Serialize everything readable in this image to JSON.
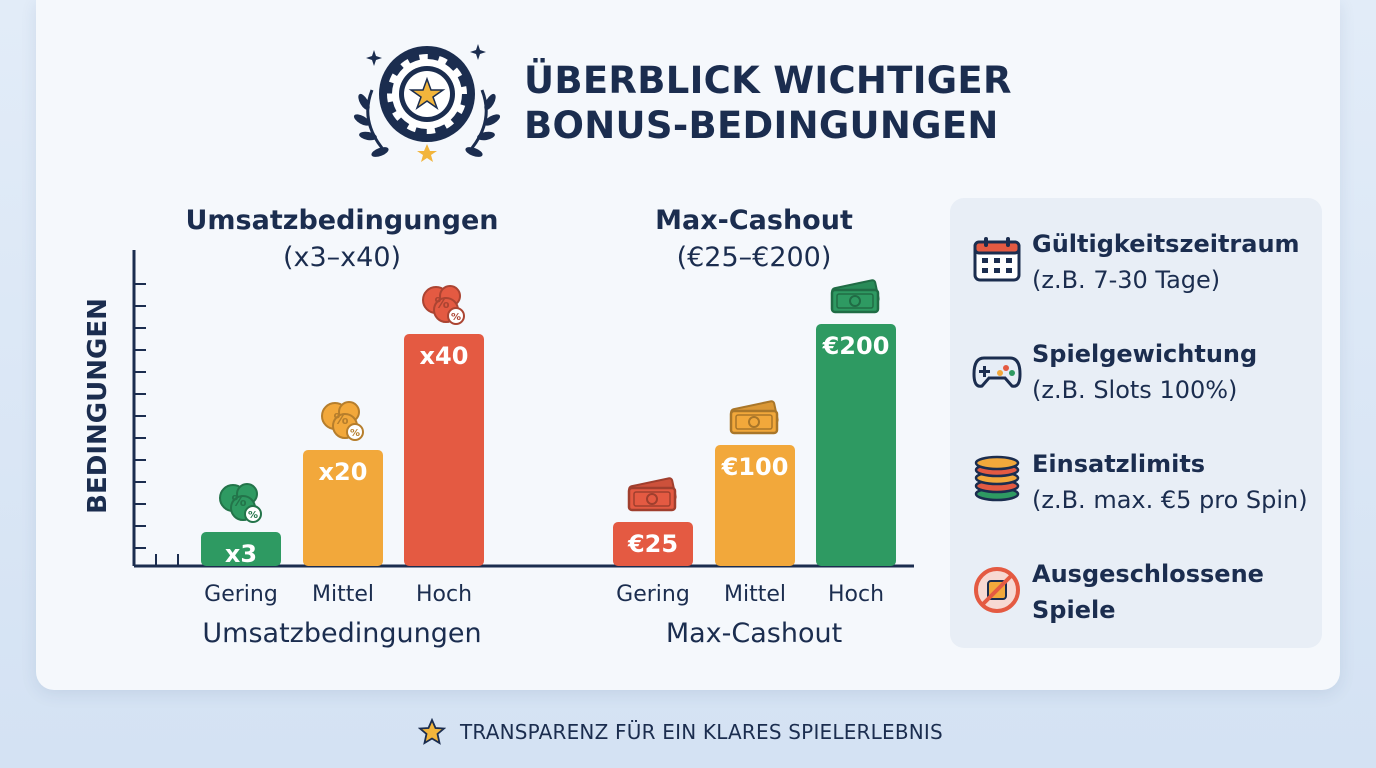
{
  "header": {
    "title_line1": "ÜBERBLICK WICHTIGER",
    "title_line2": "BONUS-BEDINGUNGEN"
  },
  "chart_data": [
    {
      "type": "bar",
      "title": "Umsatzbedingungen",
      "subtitle": "(x3–x40)",
      "xlabel": "Umsatzbedingungen",
      "ylabel": "BEDINGUNGEN",
      "categories": [
        "Gering",
        "Mittel",
        "Hoch"
      ],
      "values": [
        3,
        20,
        40
      ],
      "labels": [
        "x3",
        "x20",
        "x40"
      ],
      "colors": [
        "#2e9a62",
        "#f2a83b",
        "#e45a42"
      ],
      "badge_icon": "percent-badge-icon",
      "ylim": [
        0,
        48
      ]
    },
    {
      "type": "bar",
      "title": "Max-Cashout",
      "subtitle": "(€25–€200)",
      "xlabel": "Max-Cashout",
      "categories": [
        "Gering",
        "Mittel",
        "Hoch"
      ],
      "values": [
        25,
        100,
        200
      ],
      "labels": [
        "€25",
        "€100",
        "€200"
      ],
      "colors": [
        "#e45a42",
        "#f2a83b",
        "#2e9a62"
      ],
      "badge_icon": "cash-icon",
      "ylim": [
        0,
        240
      ]
    }
  ],
  "sidebar": {
    "items": [
      {
        "title": "Gültigkeitszeitraum",
        "sub": "(z.B. 7-30 Tage)",
        "icon": "calendar-icon"
      },
      {
        "title": "Spielgewichtung",
        "sub": "(z.B. Slots 100%)",
        "icon": "gamepad-icon"
      },
      {
        "title": "Einsatzlimits",
        "sub": "(z.B. max. €5 pro Spin)",
        "icon": "chip-stack-icon"
      },
      {
        "title": "Ausgeschlossene",
        "sub": "Spiele",
        "icon": "prohibited-icon"
      }
    ]
  },
  "footer": {
    "text": "TRANSPARENZ FÜR EIN KLARES SPIELERLEBNIS",
    "icon": "star-icon"
  },
  "colors": {
    "navy": "#1b2d4f",
    "green": "#2e9a62",
    "orange": "#f2a83b",
    "red": "#e45a42",
    "gold": "#f2b53c"
  }
}
